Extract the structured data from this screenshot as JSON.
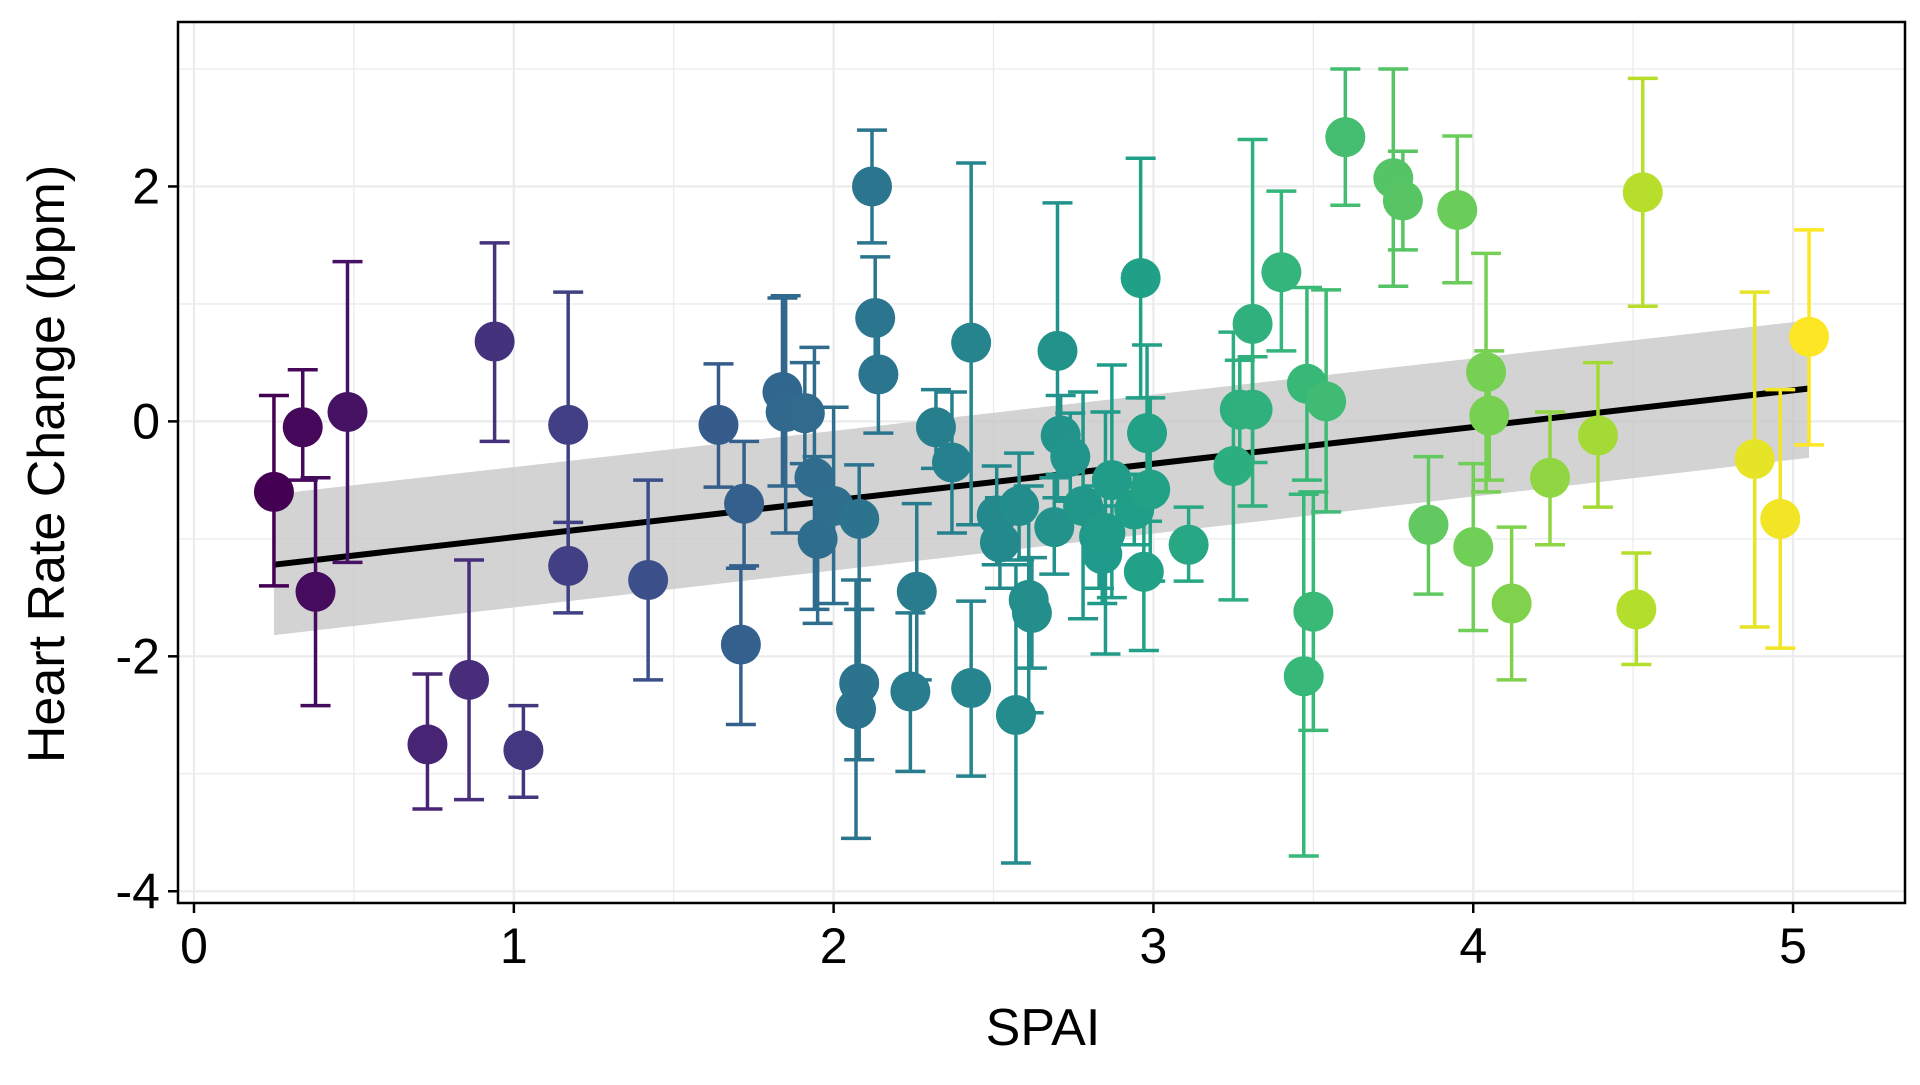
{
  "chart_data": {
    "type": "scatter",
    "title": "",
    "xlabel": "SPAI",
    "ylabel": "Heart Rate Change (bpm)",
    "xlim": [
      -0.05,
      5.35
    ],
    "ylim": [
      -4.1,
      3.4
    ],
    "x_ticks": [
      0,
      1,
      2,
      3,
      4,
      5
    ],
    "y_ticks": [
      -4,
      -2,
      0,
      2
    ],
    "x_tick_labels": [
      "0",
      "1",
      "2",
      "3",
      "4",
      "5"
    ],
    "y_tick_labels": [
      "-4",
      "-2",
      "0",
      "2"
    ],
    "grid": true,
    "legend": "none",
    "color_scale": "viridis (by SPAI)",
    "fit_line": {
      "type": "linear",
      "x": [
        0.25,
        5.05
      ],
      "y": [
        -1.22,
        0.28
      ]
    },
    "confidence_band": {
      "x": [
        0.25,
        5.05
      ],
      "lower": [
        -1.82,
        -0.31
      ],
      "upper": [
        -0.62,
        0.86
      ]
    },
    "points": [
      {
        "x": 0.25,
        "y": -0.6,
        "lo": -1.4,
        "hi": 0.22
      },
      {
        "x": 0.34,
        "y": -0.05,
        "lo": -0.5,
        "hi": 0.44
      },
      {
        "x": 0.38,
        "y": -1.45,
        "lo": -2.42,
        "hi": -0.48
      },
      {
        "x": 0.48,
        "y": 0.08,
        "lo": -1.2,
        "hi": 1.36
      },
      {
        "x": 0.73,
        "y": -2.75,
        "lo": -3.3,
        "hi": -2.15
      },
      {
        "x": 0.86,
        "y": -2.2,
        "lo": -3.22,
        "hi": -1.18
      },
      {
        "x": 0.94,
        "y": 0.68,
        "lo": -0.17,
        "hi": 1.52
      },
      {
        "x": 1.03,
        "y": -2.8,
        "lo": -3.2,
        "hi": -2.42
      },
      {
        "x": 1.17,
        "y": -0.03,
        "lo": -1.16,
        "hi": 1.1
      },
      {
        "x": 1.17,
        "y": -1.23,
        "lo": -1.63,
        "hi": -0.86
      },
      {
        "x": 1.42,
        "y": -1.35,
        "lo": -2.2,
        "hi": -0.5
      },
      {
        "x": 1.64,
        "y": -0.03,
        "lo": -0.56,
        "hi": 0.49
      },
      {
        "x": 1.71,
        "y": -1.9,
        "lo": -2.58,
        "hi": -1.25
      },
      {
        "x": 1.72,
        "y": -0.7,
        "lo": -1.23,
        "hi": -0.17
      },
      {
        "x": 1.84,
        "y": 0.25,
        "lo": -0.55,
        "hi": 1.05
      },
      {
        "x": 1.85,
        "y": 0.08,
        "lo": -0.95,
        "hi": 1.07
      },
      {
        "x": 1.91,
        "y": 0.07,
        "lo": -0.36,
        "hi": 0.5
      },
      {
        "x": 1.94,
        "y": -0.48,
        "lo": -1.6,
        "hi": 0.63
      },
      {
        "x": 1.95,
        "y": -1.0,
        "lo": -1.72,
        "hi": -0.3
      },
      {
        "x": 2.0,
        "y": -0.72,
        "lo": -1.55,
        "hi": 0.12
      },
      {
        "x": 2.07,
        "y": -2.45,
        "lo": -3.55,
        "hi": -1.35
      },
      {
        "x": 2.08,
        "y": -0.83,
        "lo": -1.6,
        "hi": -0.37
      },
      {
        "x": 2.08,
        "y": -2.23,
        "lo": -2.88,
        "hi": -1.6
      },
      {
        "x": 2.12,
        "y": 2.0,
        "lo": 1.52,
        "hi": 2.48
      },
      {
        "x": 2.13,
        "y": 0.88,
        "lo": 0.36,
        "hi": 1.4
      },
      {
        "x": 2.14,
        "y": 0.4,
        "lo": -0.1,
        "hi": 0.9
      },
      {
        "x": 2.24,
        "y": -2.3,
        "lo": -2.98,
        "hi": -1.63
      },
      {
        "x": 2.26,
        "y": -1.45,
        "lo": -2.2,
        "hi": -0.7
      },
      {
        "x": 2.32,
        "y": -0.05,
        "lo": -0.4,
        "hi": 0.27
      },
      {
        "x": 2.37,
        "y": -0.35,
        "lo": -0.95,
        "hi": 0.25
      },
      {
        "x": 2.43,
        "y": 0.67,
        "lo": -0.88,
        "hi": 2.2
      },
      {
        "x": 2.43,
        "y": -2.27,
        "lo": -3.02,
        "hi": -1.53
      },
      {
        "x": 2.51,
        "y": -0.8,
        "lo": -1.22,
        "hi": -0.38
      },
      {
        "x": 2.52,
        "y": -1.03,
        "lo": -1.42,
        "hi": -0.65
      },
      {
        "x": 2.57,
        "y": -2.5,
        "lo": -3.76,
        "hi": -1.22
      },
      {
        "x": 2.58,
        "y": -0.72,
        "lo": -1.18,
        "hi": -0.27
      },
      {
        "x": 2.61,
        "y": -1.52,
        "lo": -2.48,
        "hi": -0.55
      },
      {
        "x": 2.62,
        "y": -1.63,
        "lo": -2.1,
        "hi": -1.16
      },
      {
        "x": 2.69,
        "y": -0.9,
        "lo": -1.3,
        "hi": -0.48
      },
      {
        "x": 2.7,
        "y": 0.6,
        "lo": -0.65,
        "hi": 1.86
      },
      {
        "x": 2.71,
        "y": -0.12,
        "lo": -0.45,
        "hi": 0.22
      },
      {
        "x": 2.74,
        "y": -0.3,
        "lo": -0.68,
        "hi": 0.07
      },
      {
        "x": 2.78,
        "y": -0.72,
        "lo": -1.68,
        "hi": 0.25
      },
      {
        "x": 2.83,
        "y": -0.98,
        "lo": -1.42,
        "hi": -0.55
      },
      {
        "x": 2.84,
        "y": -1.13,
        "lo": -1.55,
        "hi": -0.72
      },
      {
        "x": 2.85,
        "y": -0.95,
        "lo": -1.98,
        "hi": 0.08
      },
      {
        "x": 2.87,
        "y": -0.5,
        "lo": -1.5,
        "hi": 0.48
      },
      {
        "x": 2.94,
        "y": -0.75,
        "lo": -1.05,
        "hi": -0.45
      },
      {
        "x": 2.96,
        "y": 1.22,
        "lo": 0.2,
        "hi": 2.24
      },
      {
        "x": 2.97,
        "y": -1.28,
        "lo": -1.95,
        "hi": -0.62
      },
      {
        "x": 2.98,
        "y": -0.1,
        "lo": -0.85,
        "hi": 0.65
      },
      {
        "x": 2.99,
        "y": -0.58,
        "lo": -1.36,
        "hi": 0.2
      },
      {
        "x": 3.11,
        "y": -1.05,
        "lo": -1.36,
        "hi": -0.73
      },
      {
        "x": 3.25,
        "y": -0.38,
        "lo": -1.52,
        "hi": 0.76
      },
      {
        "x": 3.27,
        "y": 0.1,
        "lo": -0.32,
        "hi": 0.52
      },
      {
        "x": 3.31,
        "y": 0.1,
        "lo": -0.35,
        "hi": 0.55
      },
      {
        "x": 3.31,
        "y": 0.83,
        "lo": -0.72,
        "hi": 2.4
      },
      {
        "x": 3.4,
        "y": 1.27,
        "lo": 0.6,
        "hi": 1.96
      },
      {
        "x": 3.47,
        "y": -2.17,
        "lo": -3.7,
        "hi": -0.62
      },
      {
        "x": 3.48,
        "y": 0.32,
        "lo": -0.5,
        "hi": 1.14
      },
      {
        "x": 3.5,
        "y": -1.62,
        "lo": -2.63,
        "hi": -0.6
      },
      {
        "x": 3.54,
        "y": 0.17,
        "lo": -0.77,
        "hi": 1.12
      },
      {
        "x": 3.6,
        "y": 2.42,
        "lo": 1.84,
        "hi": 3.0
      },
      {
        "x": 3.75,
        "y": 2.07,
        "lo": 1.15,
        "hi": 3.0
      },
      {
        "x": 3.78,
        "y": 1.88,
        "lo": 1.46,
        "hi": 2.3
      },
      {
        "x": 3.86,
        "y": -0.88,
        "lo": -1.47,
        "hi": -0.3
      },
      {
        "x": 3.95,
        "y": 1.8,
        "lo": 1.18,
        "hi": 2.43
      },
      {
        "x": 4.0,
        "y": -1.07,
        "lo": -1.78,
        "hi": -0.36
      },
      {
        "x": 4.04,
        "y": 0.42,
        "lo": -0.6,
        "hi": 1.43
      },
      {
        "x": 4.05,
        "y": 0.05,
        "lo": -0.5,
        "hi": 0.6
      },
      {
        "x": 4.12,
        "y": -1.55,
        "lo": -2.2,
        "hi": -0.9
      },
      {
        "x": 4.24,
        "y": -0.48,
        "lo": -1.05,
        "hi": 0.08
      },
      {
        "x": 4.39,
        "y": -0.12,
        "lo": -0.73,
        "hi": 0.5
      },
      {
        "x": 4.51,
        "y": -1.6,
        "lo": -2.07,
        "hi": -1.12
      },
      {
        "x": 4.53,
        "y": 1.95,
        "lo": 0.98,
        "hi": 2.92
      },
      {
        "x": 4.88,
        "y": -0.32,
        "lo": -1.75,
        "hi": 1.1
      },
      {
        "x": 4.96,
        "y": -0.83,
        "lo": -1.93,
        "hi": 0.27
      },
      {
        "x": 5.05,
        "y": 0.72,
        "lo": -0.2,
        "hi": 1.63
      }
    ]
  }
}
